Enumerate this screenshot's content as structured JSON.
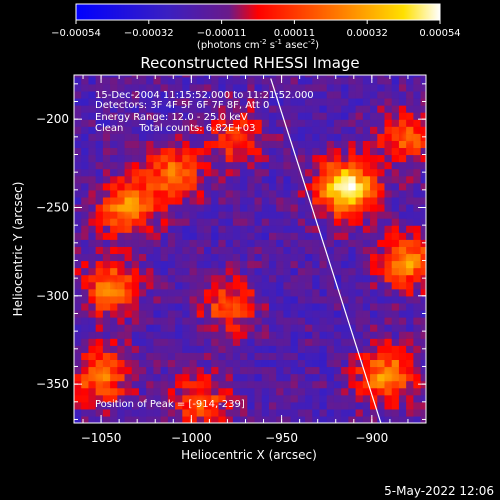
{
  "chart_data": {
    "type": "heatmap",
    "title": "Reconstructed RHESSI Image",
    "xlabel": "Heliocentric X (arcsec)",
    "ylabel": "Heliocentric Y (arcsec)",
    "x_range": [
      -1065,
      -870
    ],
    "y_range": [
      -372,
      -175
    ],
    "x_ticks": [
      {
        "value": -1050,
        "label": "-1050"
      },
      {
        "value": -1000,
        "label": "-1000"
      },
      {
        "value": -950,
        "label": "-950"
      },
      {
        "value": -900,
        "label": "-900"
      }
    ],
    "y_ticks": [
      {
        "value": -200,
        "label": "-200"
      },
      {
        "value": -250,
        "label": "-250"
      },
      {
        "value": -300,
        "label": "-300"
      },
      {
        "value": -350,
        "label": "-350"
      }
    ],
    "colorbar": {
      "range": [
        -0.00054,
        0.00054
      ],
      "tick_labels": [
        "-0.00054",
        "-0.00032",
        "-0.00011",
        "0.00011",
        "0.00032",
        "0.00054"
      ],
      "unit_parts": [
        "(photons cm",
        "-2",
        " s",
        "-1",
        " asec",
        "-2",
        ")"
      ]
    },
    "annotations": [
      "15-Dec-2004 11:15:52.000 to 11:21:52.000",
      "Detectors: 3F 4F 5F 6F 7F 8F, Att 0",
      "Energy Range: 12.0 - 25.0 keV",
      "Clean     Total counts: 6.82E+03"
    ],
    "peak_label": "Position of Peak = [-914,-239]",
    "peak": {
      "x": -914,
      "y": -239
    },
    "limb_line": [
      {
        "x": -956,
        "y": -177
      },
      {
        "x": -895,
        "y": -372
      }
    ],
    "sources": [
      {
        "x": -914,
        "y": -239,
        "value": 0.00054
      },
      {
        "x": -1035,
        "y": -250,
        "value": 0.00034
      },
      {
        "x": -1010,
        "y": -230,
        "value": 0.00028
      },
      {
        "x": -1045,
        "y": -295,
        "value": 0.0003
      },
      {
        "x": -980,
        "y": -305,
        "value": 0.00024
      },
      {
        "x": -975,
        "y": -210,
        "value": 0.00022
      },
      {
        "x": -1050,
        "y": -345,
        "value": 0.0003
      },
      {
        "x": -995,
        "y": -360,
        "value": 0.00024
      },
      {
        "x": -880,
        "y": -280,
        "value": 0.00034
      },
      {
        "x": -892,
        "y": -345,
        "value": 0.00034
      },
      {
        "x": -880,
        "y": -210,
        "value": 0.00026
      }
    ],
    "timestamp": "5-May-2022 12:06"
  }
}
